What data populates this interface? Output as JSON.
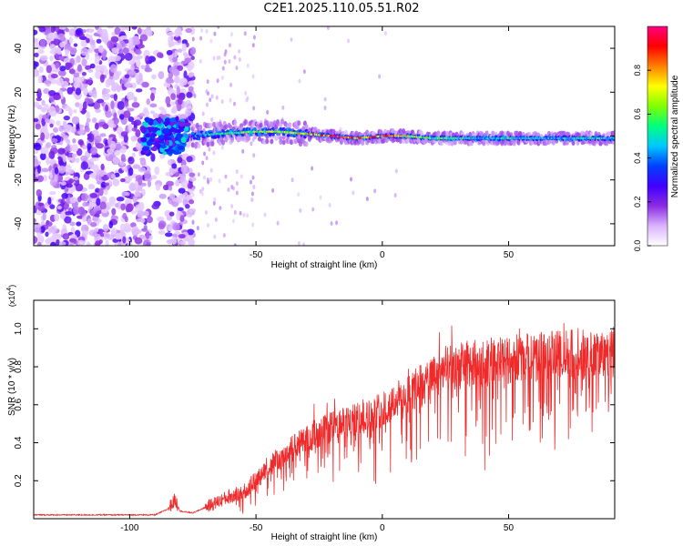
{
  "title": "C2E1.2025.110.05.51.R02",
  "colorbar": {
    "label": "Normalized spectral amplitude",
    "ticks": [
      "0.0",
      "0.2",
      "0.4",
      "0.6",
      "0.8"
    ],
    "colors": [
      "#ffffff",
      "#d9b3ff",
      "#8a2be2",
      "#4000ff",
      "#0040ff",
      "#00c8ff",
      "#00ff80",
      "#80ff00",
      "#ffff00",
      "#ff8000",
      "#ff0000",
      "#ff0080"
    ]
  },
  "chart_data": [
    {
      "type": "heatmap",
      "title": "",
      "xlabel": "Height of straight line (km)",
      "ylabel": "Frequency (Hz)",
      "xlim": [
        -138,
        92
      ],
      "ylim": [
        -50,
        50
      ],
      "xticks": [
        "-100",
        "-50",
        "0",
        "50"
      ],
      "yticks": [
        "-40",
        "-20",
        "0",
        "20",
        "40"
      ],
      "description_points": {
        "noise_region_x": [
          -138,
          -75
        ],
        "signal_onset_x": -75,
        "ridge_x": [
          -75,
          -65,
          -50,
          -40,
          -30,
          -20,
          -10,
          0,
          10,
          20,
          30,
          40,
          50,
          60,
          70,
          80,
          90
        ],
        "ridge_freq_hz": [
          0,
          1,
          2,
          2,
          1,
          0,
          -1,
          0,
          0,
          -1,
          -1,
          -1,
          -1,
          -1,
          -1,
          -1,
          -1
        ],
        "ridge_amplitude": [
          0.4,
          0.55,
          0.7,
          0.65,
          0.8,
          0.95,
          0.85,
          0.9,
          0.75,
          0.6,
          0.55,
          0.5,
          0.55,
          0.5,
          0.5,
          0.55,
          0.5
        ]
      }
    },
    {
      "type": "line",
      "title": "",
      "xlabel": "Height of straight line (km)",
      "ylabel": "SNR (10 * v/v)",
      "multiplier": "(x10",
      "multiplier_exp": "4",
      "xlim": [
        -138,
        92
      ],
      "ylim": [
        0,
        1.15
      ],
      "xticks": [
        "-100",
        "-50",
        "0",
        "50"
      ],
      "yticks": [
        "0.2",
        "0.4",
        "0.6",
        "0.8",
        "1.0"
      ],
      "series": [
        {
          "color": "#ee2a2a",
          "x": [
            -138,
            -110,
            -90,
            -85,
            -82,
            -80,
            -75,
            -70,
            -65,
            -60,
            -55,
            -50,
            -45,
            -40,
            -35,
            -30,
            -25,
            -20,
            -15,
            -10,
            -5,
            0,
            5,
            10,
            15,
            20,
            25,
            30,
            35,
            40,
            45,
            50,
            55,
            60,
            65,
            70,
            75,
            80,
            85,
            90,
            92
          ],
          "y": [
            0.02,
            0.02,
            0.02,
            0.05,
            0.1,
            0.04,
            0.03,
            0.06,
            0.09,
            0.12,
            0.14,
            0.2,
            0.28,
            0.32,
            0.38,
            0.42,
            0.46,
            0.48,
            0.5,
            0.52,
            0.54,
            0.58,
            0.62,
            0.66,
            0.7,
            0.74,
            0.78,
            0.8,
            0.82,
            0.82,
            0.83,
            0.84,
            0.85,
            0.85,
            0.86,
            0.86,
            0.87,
            0.87,
            0.88,
            0.88,
            0.88
          ]
        }
      ]
    }
  ]
}
